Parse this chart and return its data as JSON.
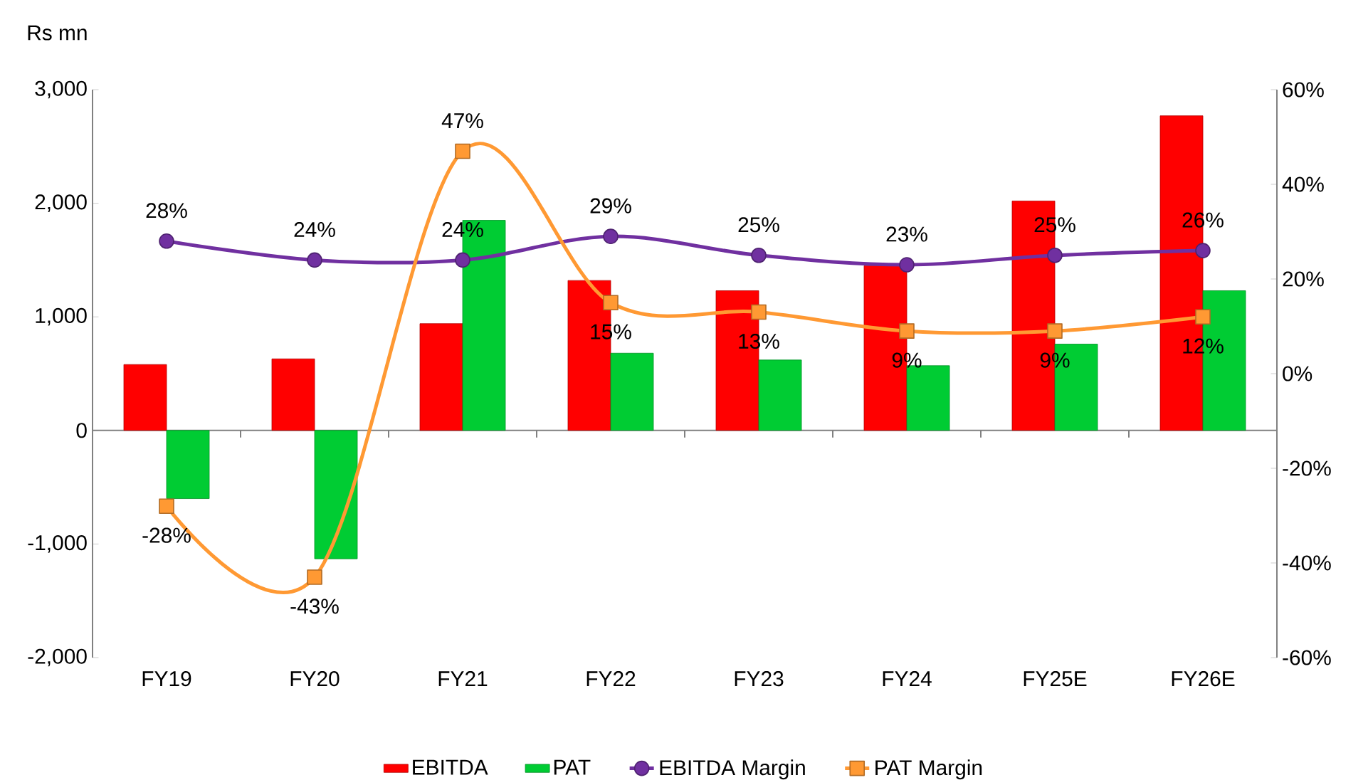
{
  "chart_data": {
    "type": "bar",
    "ylabel": "Rs mn",
    "categories": [
      "FY19",
      "FY20",
      "FY21",
      "FY22",
      "FY23",
      "FY24",
      "FY25E",
      "FY26E"
    ],
    "ylim": [
      -2000,
      3000
    ],
    "yticks": [
      {
        "value": -2000,
        "label": "-2,000"
      },
      {
        "value": -1000,
        "label": "-1,000"
      },
      0,
      {
        "value": 1000,
        "label": "1,000"
      },
      {
        "value": 2000,
        "label": "2,000"
      },
      {
        "value": 3000,
        "label": "3,000"
      }
    ],
    "y2lim": [
      -60,
      60
    ],
    "y2ticks": [
      {
        "value": -60,
        "label": "-60%"
      },
      {
        "value": -40,
        "label": "-40%"
      },
      {
        "value": -20,
        "label": "-20%"
      },
      {
        "value": 0,
        "label": "0%"
      },
      {
        "value": 20,
        "label": "20%"
      },
      {
        "value": 40,
        "label": "40%"
      },
      {
        "value": 60,
        "label": "60%"
      }
    ],
    "legend": "bottom",
    "series": [
      {
        "name": "EBITDA",
        "color": "#ff0000",
        "values": [
          580,
          630,
          940,
          1320,
          1230,
          1450,
          2020,
          2770
        ]
      },
      {
        "name": "PAT",
        "color": "#00cc33",
        "values": [
          -600,
          -1130,
          1850,
          680,
          620,
          570,
          760,
          1230
        ]
      },
      {
        "name": "EBITDA Margin",
        "type": "line",
        "axis": "y2",
        "marker": "circle",
        "color": "#7030a0",
        "values": [
          28,
          24,
          24,
          29,
          25,
          23,
          25,
          26
        ],
        "value_labels": [
          "28%",
          "24%",
          "24%",
          "29%",
          "25%",
          "23%",
          "25%",
          "26%"
        ]
      },
      {
        "name": "PAT Margin",
        "type": "line",
        "axis": "y2",
        "marker": "square",
        "color": "#ff9933",
        "values": [
          -28,
          -43,
          47,
          15,
          13,
          9,
          9,
          12
        ],
        "value_labels": [
          "-28%",
          "-43%",
          "47%",
          "15%",
          "13%",
          "9%",
          "9%",
          "12%"
        ]
      }
    ]
  }
}
